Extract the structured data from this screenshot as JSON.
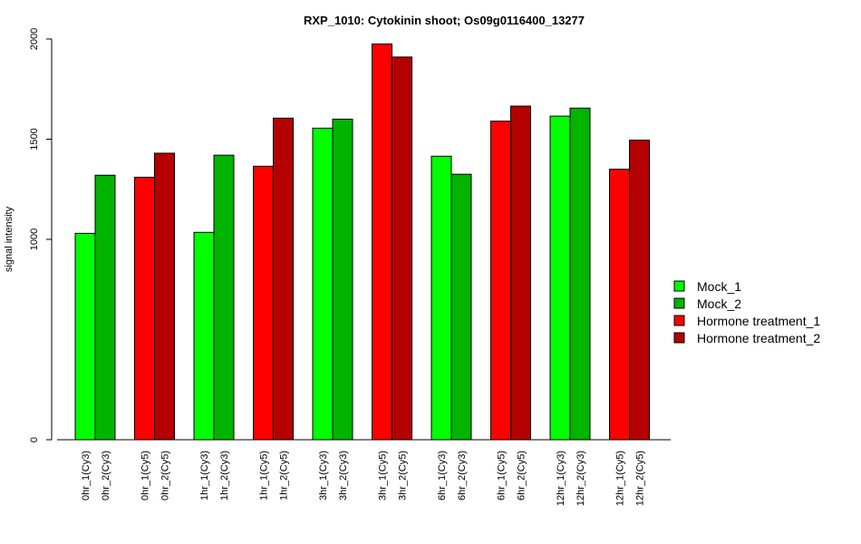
{
  "chart_data": {
    "type": "bar",
    "title": "RXP_1010: Cytokinin shoot; Os09g0116400_13277",
    "ylabel": "signal intensity",
    "xlabel": "",
    "ylim": [
      0,
      2000
    ],
    "yticks": [
      0,
      1000,
      1500,
      2000
    ],
    "grid": false,
    "legend_position": "right",
    "bars": [
      {
        "label": "0hr_1(Cy3)",
        "value": 1030,
        "series": "Mock_1",
        "color": "#00ff00"
      },
      {
        "label": "0hr_2(Cy3)",
        "value": 1320,
        "series": "Mock_2",
        "color": "#00b400"
      },
      {
        "label": "0hr_1(Cy5)",
        "value": 1310,
        "series": "Hormone treatment_1",
        "color": "#ff0000"
      },
      {
        "label": "0hr_2(Cy5)",
        "value": 1430,
        "series": "Hormone treatment_2",
        "color": "#b40000"
      },
      {
        "label": "1hr_1(Cy3)",
        "value": 1035,
        "series": "Mock_1",
        "color": "#00ff00"
      },
      {
        "label": "1hr_2(Cy3)",
        "value": 1420,
        "series": "Mock_2",
        "color": "#00b400"
      },
      {
        "label": "1hr_1(Cy5)",
        "value": 1365,
        "series": "Hormone treatment_1",
        "color": "#ff0000"
      },
      {
        "label": "1hr_2(Cy5)",
        "value": 1605,
        "series": "Hormone treatment_2",
        "color": "#b40000"
      },
      {
        "label": "3hr_1(Cy3)",
        "value": 1555,
        "series": "Mock_1",
        "color": "#00ff00"
      },
      {
        "label": "3hr_2(Cy3)",
        "value": 1600,
        "series": "Mock_2",
        "color": "#00b400"
      },
      {
        "label": "3hr_1(Cy5)",
        "value": 1975,
        "series": "Hormone treatment_1",
        "color": "#ff0000"
      },
      {
        "label": "3hr_2(Cy5)",
        "value": 1910,
        "series": "Hormone treatment_2",
        "color": "#b40000"
      },
      {
        "label": "6hr_1(Cy3)",
        "value": 1415,
        "series": "Mock_1",
        "color": "#00ff00"
      },
      {
        "label": "6hr_2(Cy3)",
        "value": 1325,
        "series": "Mock_2",
        "color": "#00b400"
      },
      {
        "label": "6hr_1(Cy5)",
        "value": 1590,
        "series": "Hormone treatment_1",
        "color": "#ff0000"
      },
      {
        "label": "6hr_2(Cy5)",
        "value": 1665,
        "series": "Hormone treatment_2",
        "color": "#b40000"
      },
      {
        "label": "12hr_1(Cy3)",
        "value": 1615,
        "series": "Mock_1",
        "color": "#00ff00"
      },
      {
        "label": "12hr_2(Cy3)",
        "value": 1655,
        "series": "Mock_2",
        "color": "#00b400"
      },
      {
        "label": "12hr_1(Cy5)",
        "value": 1350,
        "series": "Hormone treatment_1",
        "color": "#ff0000"
      },
      {
        "label": "12hr_2(Cy5)",
        "value": 1495,
        "series": "Hormone treatment_2",
        "color": "#b40000"
      }
    ],
    "legend": [
      {
        "name": "Mock_1",
        "color": "#00ff00"
      },
      {
        "name": "Mock_2",
        "color": "#00b400"
      },
      {
        "name": "Hormone treatment_1",
        "color": "#ff0000"
      },
      {
        "name": "Hormone treatment_2",
        "color": "#b40000"
      }
    ]
  }
}
